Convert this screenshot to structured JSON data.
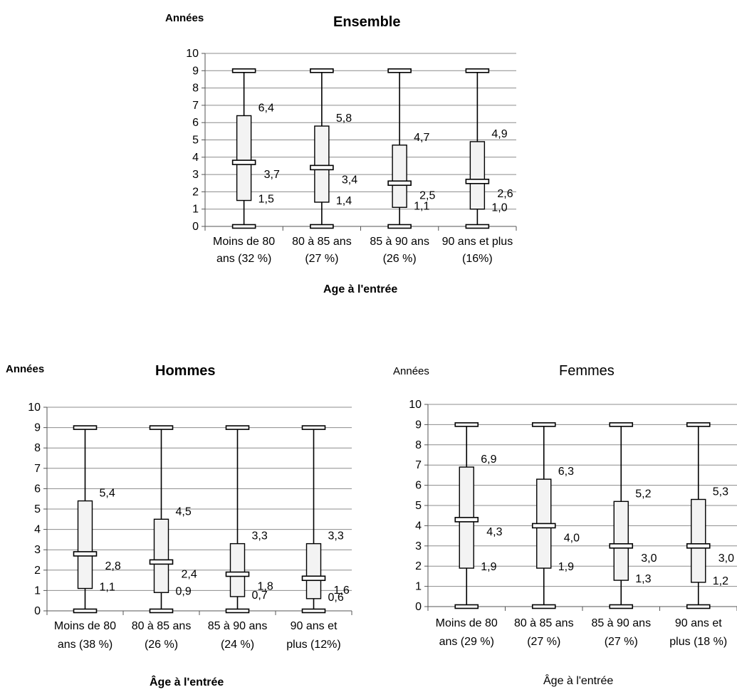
{
  "chart_data": [
    {
      "type": "box",
      "title": "Ensemble",
      "ylabel": "Années",
      "xlabel": "Age à l'entrée",
      "ylim": [
        0,
        10
      ],
      "yticks": [
        0,
        1,
        2,
        3,
        4,
        5,
        6,
        7,
        8,
        9,
        10
      ],
      "grid": true,
      "categories": [
        "Moins de 80 ans (32 %)",
        "80 à 85 ans (27 %)",
        "85 à 90 ans (26 %)",
        "90 ans et plus (16%)"
      ],
      "category_lines": [
        [
          "Moins de 80",
          "ans (32 %)"
        ],
        [
          "80 à 85 ans",
          "(27 %)"
        ],
        [
          "85 à 90 ans",
          "(26 %)"
        ],
        [
          "90 ans et plus",
          "(16%)"
        ]
      ],
      "min": [
        0,
        0,
        0,
        0
      ],
      "q1": [
        1.5,
        1.4,
        1.1,
        1.0
      ],
      "median": [
        3.7,
        3.4,
        2.5,
        2.6
      ],
      "q3": [
        6.4,
        5.8,
        4.7,
        4.9
      ],
      "max": [
        9,
        9,
        9,
        9
      ],
      "labels": {
        "q1": [
          "1,5",
          "1,4",
          "1,1",
          "1,0"
        ],
        "median": [
          "3,7",
          "3,4",
          "2,5",
          "2,6"
        ],
        "q3": [
          "6,4",
          "5,8",
          "4,7",
          "4,9"
        ]
      }
    },
    {
      "type": "box",
      "title": "Hommes",
      "ylabel": "Années",
      "xlabel": "Âge à l'entrée",
      "ylim": [
        0,
        10
      ],
      "yticks": [
        0,
        1,
        2,
        3,
        4,
        5,
        6,
        7,
        8,
        9,
        10
      ],
      "grid": true,
      "categories": [
        "Moins de 80 ans (38 %)",
        "80 à 85 ans (26 %)",
        "85 à 90 ans (24 %)",
        "90 ans et plus (12%)"
      ],
      "category_lines": [
        [
          "Moins de 80",
          "ans (38 %)"
        ],
        [
          "80 à 85 ans",
          "(26 %)"
        ],
        [
          "85 à 90 ans",
          "(24 %)"
        ],
        [
          "90 ans et",
          "plus (12%)"
        ]
      ],
      "min": [
        0,
        0,
        0,
        0
      ],
      "q1": [
        1.1,
        0.9,
        0.7,
        0.6
      ],
      "median": [
        2.8,
        2.4,
        1.8,
        1.6
      ],
      "q3": [
        5.4,
        4.5,
        3.3,
        3.3
      ],
      "max": [
        9,
        9,
        9,
        9
      ],
      "labels": {
        "q1": [
          "1,1",
          "0,9",
          "0,7",
          "0,6"
        ],
        "median": [
          "2,8",
          "2,4",
          "1,8",
          "1,6"
        ],
        "q3": [
          "5,4",
          "4,5",
          "3,3",
          "3,3"
        ]
      }
    },
    {
      "type": "box",
      "title": "Femmes",
      "ylabel": "Années",
      "xlabel": "Âge à l'entrée",
      "ylim": [
        0,
        10
      ],
      "yticks": [
        0,
        1,
        2,
        3,
        4,
        5,
        6,
        7,
        8,
        9,
        10
      ],
      "grid": true,
      "categories": [
        "Moins de 80 ans (29 %)",
        "80 à 85 ans (27 %)",
        "85 à 90 ans (27 %)",
        "90 ans et plus (18 %)"
      ],
      "category_lines": [
        [
          "Moins de 80",
          "ans (29 %)"
        ],
        [
          "80 à 85 ans",
          "(27 %)"
        ],
        [
          "85 à 90 ans",
          "(27 %)"
        ],
        [
          "90 ans et",
          "plus (18 %)"
        ]
      ],
      "min": [
        0,
        0,
        0,
        0
      ],
      "q1": [
        1.9,
        1.9,
        1.3,
        1.2
      ],
      "median": [
        4.3,
        4.0,
        3.0,
        3.0
      ],
      "q3": [
        6.9,
        6.3,
        5.2,
        5.3
      ],
      "max": [
        9,
        9,
        9,
        9
      ],
      "labels": {
        "q1": [
          "1,9",
          "1,9",
          "1,3",
          "1,2"
        ],
        "median": [
          "4,3",
          "4,0",
          "3,0",
          "3,0"
        ],
        "q3": [
          "6,9",
          "6,3",
          "5,2",
          "5,3"
        ]
      }
    }
  ]
}
